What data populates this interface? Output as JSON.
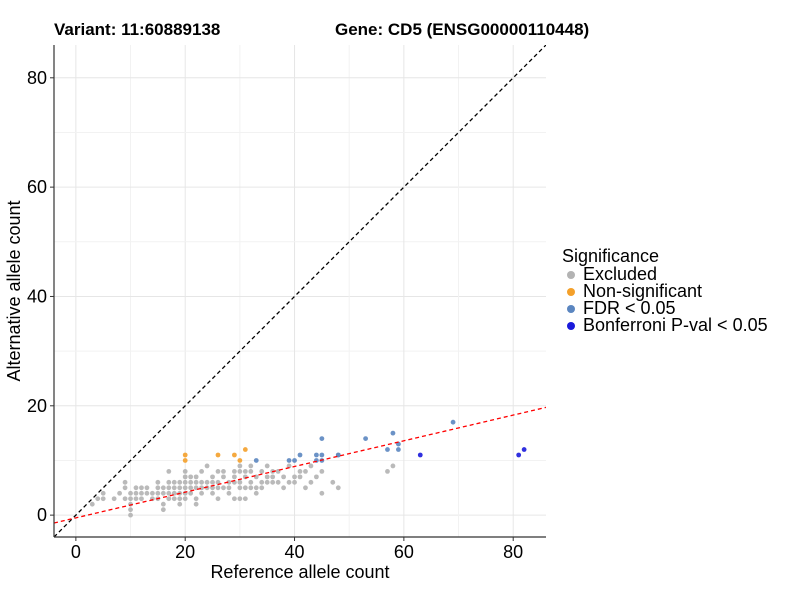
{
  "titles": {
    "variant": "Variant: 11:60889138",
    "gene": "Gene: CD5 (ENSG00000110448)"
  },
  "chart_data": {
    "type": "scatter",
    "title": "Variant: 11:60889138 Gene: CD5 (ENSG00000110448)",
    "xlabel": "Reference allele count",
    "ylabel": "Alternative allele count",
    "xlim": [
      -4,
      86
    ],
    "ylim": [
      -4,
      86
    ],
    "x_ticks": [
      0,
      20,
      40,
      60,
      80
    ],
    "y_ticks": [
      0,
      20,
      40,
      60,
      80
    ],
    "grid": true,
    "legend": {
      "title": "Significance",
      "placement": "right",
      "entries": [
        {
          "label": "Excluded",
          "color": "#b3b3b3"
        },
        {
          "label": "Non-significant",
          "color": "#f4a02a"
        },
        {
          "label": "FDR < 0.05",
          "color": "#5b86c0"
        },
        {
          "label": "Bonferroni P-val < 0.05",
          "color": "#1a1adb"
        }
      ]
    },
    "reference_lines": [
      {
        "name": "y = x",
        "slope": 1,
        "intercept": 0,
        "color": "#000000",
        "style": "dashed"
      },
      {
        "name": "fit",
        "slope": 0.235,
        "intercept": -0.5,
        "color": "#ff0000",
        "style": "dashed"
      }
    ],
    "series": [
      {
        "name": "Excluded",
        "color": "#b3b3b3",
        "points": [
          [
            3,
            2
          ],
          [
            4,
            3
          ],
          [
            5,
            4
          ],
          [
            5,
            3
          ],
          [
            7,
            3
          ],
          [
            8,
            4
          ],
          [
            9,
            5
          ],
          [
            9,
            6
          ],
          [
            9,
            3
          ],
          [
            10,
            4
          ],
          [
            10,
            2
          ],
          [
            10,
            3
          ],
          [
            10,
            0
          ],
          [
            10,
            1
          ],
          [
            11,
            3
          ],
          [
            11,
            5
          ],
          [
            11,
            4
          ],
          [
            12,
            3
          ],
          [
            12,
            4
          ],
          [
            12,
            5
          ],
          [
            13,
            4
          ],
          [
            13,
            5
          ],
          [
            14,
            3
          ],
          [
            14,
            4
          ],
          [
            15,
            4
          ],
          [
            15,
            5
          ],
          [
            15,
            6
          ],
          [
            15,
            3
          ],
          [
            16,
            4
          ],
          [
            16,
            5
          ],
          [
            16,
            1
          ],
          [
            16,
            2
          ],
          [
            17,
            3
          ],
          [
            17,
            4
          ],
          [
            17,
            5
          ],
          [
            17,
            6
          ],
          [
            17,
            8
          ],
          [
            18,
            4
          ],
          [
            18,
            5
          ],
          [
            18,
            6
          ],
          [
            18,
            3
          ],
          [
            19,
            4
          ],
          [
            19,
            5
          ],
          [
            19,
            6
          ],
          [
            19,
            2
          ],
          [
            19,
            3
          ],
          [
            20,
            3
          ],
          [
            20,
            4
          ],
          [
            20,
            5
          ],
          [
            20,
            6
          ],
          [
            20,
            7
          ],
          [
            20,
            8
          ],
          [
            21,
            4
          ],
          [
            21,
            5
          ],
          [
            21,
            6
          ],
          [
            21,
            7
          ],
          [
            22,
            2
          ],
          [
            22,
            3
          ],
          [
            22,
            5
          ],
          [
            22,
            6
          ],
          [
            22,
            7
          ],
          [
            23,
            4
          ],
          [
            23,
            5
          ],
          [
            23,
            6
          ],
          [
            23,
            8
          ],
          [
            24,
            5
          ],
          [
            24,
            6
          ],
          [
            24,
            9
          ],
          [
            25,
            4
          ],
          [
            25,
            5
          ],
          [
            25,
            6
          ],
          [
            25,
            7
          ],
          [
            26,
            3
          ],
          [
            26,
            5
          ],
          [
            26,
            6
          ],
          [
            26,
            8
          ],
          [
            27,
            5
          ],
          [
            27,
            7
          ],
          [
            27,
            8
          ],
          [
            28,
            4
          ],
          [
            28,
            5
          ],
          [
            28,
            6
          ],
          [
            29,
            3
          ],
          [
            29,
            6
          ],
          [
            29,
            7
          ],
          [
            29,
            8
          ],
          [
            30,
            3
          ],
          [
            30,
            5
          ],
          [
            30,
            6
          ],
          [
            30,
            8
          ],
          [
            30,
            9
          ],
          [
            31,
            3
          ],
          [
            31,
            5
          ],
          [
            31,
            7
          ],
          [
            31,
            8
          ],
          [
            32,
            5
          ],
          [
            32,
            6
          ],
          [
            32,
            8
          ],
          [
            32,
            9
          ],
          [
            33,
            4
          ],
          [
            33,
            5
          ],
          [
            33,
            7
          ],
          [
            34,
            5
          ],
          [
            34,
            6
          ],
          [
            34,
            8
          ],
          [
            35,
            6
          ],
          [
            35,
            7
          ],
          [
            35,
            9
          ],
          [
            36,
            6
          ],
          [
            36,
            7
          ],
          [
            36,
            8
          ],
          [
            37,
            6
          ],
          [
            37,
            8
          ],
          [
            38,
            5
          ],
          [
            38,
            7
          ],
          [
            39,
            6
          ],
          [
            39,
            9
          ],
          [
            40,
            6
          ],
          [
            40,
            7
          ],
          [
            41,
            7
          ],
          [
            41,
            8
          ],
          [
            42,
            5
          ],
          [
            42,
            8
          ],
          [
            43,
            6
          ],
          [
            43,
            9
          ],
          [
            44,
            7
          ],
          [
            45,
            4
          ],
          [
            45,
            8
          ],
          [
            47,
            6
          ],
          [
            48,
            5
          ],
          [
            48,
            11
          ],
          [
            57,
            8
          ],
          [
            58,
            9
          ]
        ]
      },
      {
        "name": "Non-significant",
        "color": "#f4a02a",
        "points": [
          [
            20,
            10
          ],
          [
            20,
            11
          ],
          [
            26,
            11
          ],
          [
            29,
            11
          ],
          [
            30,
            10
          ],
          [
            31,
            12
          ]
        ]
      },
      {
        "name": "FDR < 0.05",
        "color": "#5b86c0",
        "points": [
          [
            33,
            10
          ],
          [
            39,
            10
          ],
          [
            40,
            10
          ],
          [
            41,
            11
          ],
          [
            44,
            10
          ],
          [
            44,
            11
          ],
          [
            45,
            10
          ],
          [
            45,
            11
          ],
          [
            45,
            14
          ],
          [
            48,
            11
          ],
          [
            53,
            14
          ],
          [
            57,
            12
          ],
          [
            58,
            15
          ],
          [
            59,
            12
          ],
          [
            59,
            13
          ],
          [
            69,
            17
          ]
        ]
      },
      {
        "name": "Bonferroni P-val < 0.05",
        "color": "#1a1adb",
        "points": [
          [
            63,
            11
          ],
          [
            81,
            11
          ],
          [
            82,
            12
          ]
        ]
      }
    ]
  }
}
